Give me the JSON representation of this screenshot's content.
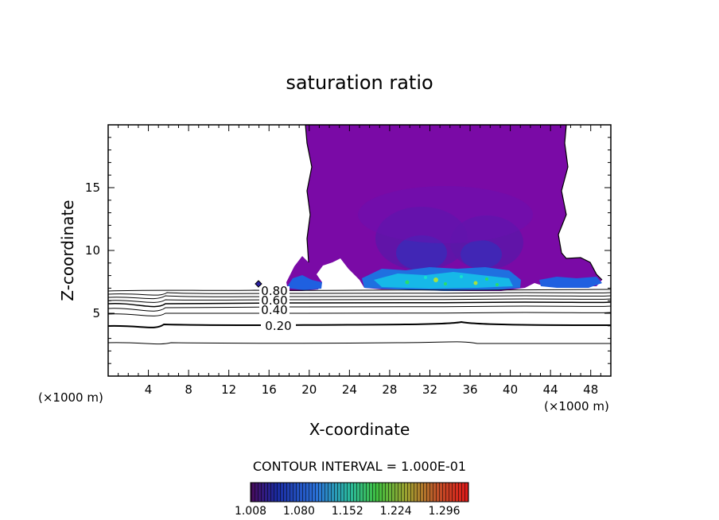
{
  "chart_data": {
    "type": "contour",
    "title": "saturation ratio",
    "xlabel": "X-coordinate",
    "ylabel": "Z-coordinate",
    "x_unit_left": "(×1000 m)",
    "x_unit_right": "(×1000 m)",
    "xlim": [
      0,
      50
    ],
    "ylim": [
      0,
      20
    ],
    "x_ticks": [
      4,
      8,
      12,
      16,
      20,
      24,
      28,
      32,
      36,
      40,
      44,
      48
    ],
    "y_ticks": [
      5,
      10,
      15
    ],
    "contour_interval_text": "CONTOUR INTERVAL = 1.000E-01",
    "contour_labels": [
      {
        "text": "0.80",
        "x": 16.4,
        "z": 6.4
      },
      {
        "text": "0.60",
        "x": 16.4,
        "z": 5.6
      },
      {
        "text": "0.40",
        "x": 16.4,
        "z": 4.9
      },
      {
        "text": "0.20",
        "x": 16.4,
        "z": 3.9
      }
    ],
    "colorbar": {
      "min": 1.008,
      "max": 1.332,
      "tick_labels": [
        "1.008",
        "1.080",
        "1.152",
        "1.224",
        "1.296"
      ],
      "colors": [
        "#5a0a8c",
        "#3a2ab8",
        "#1f60e0",
        "#16b0e6",
        "#2adc6a",
        "#a8d838",
        "#d8a030",
        "#e04a1c",
        "#f01818"
      ]
    }
  }
}
